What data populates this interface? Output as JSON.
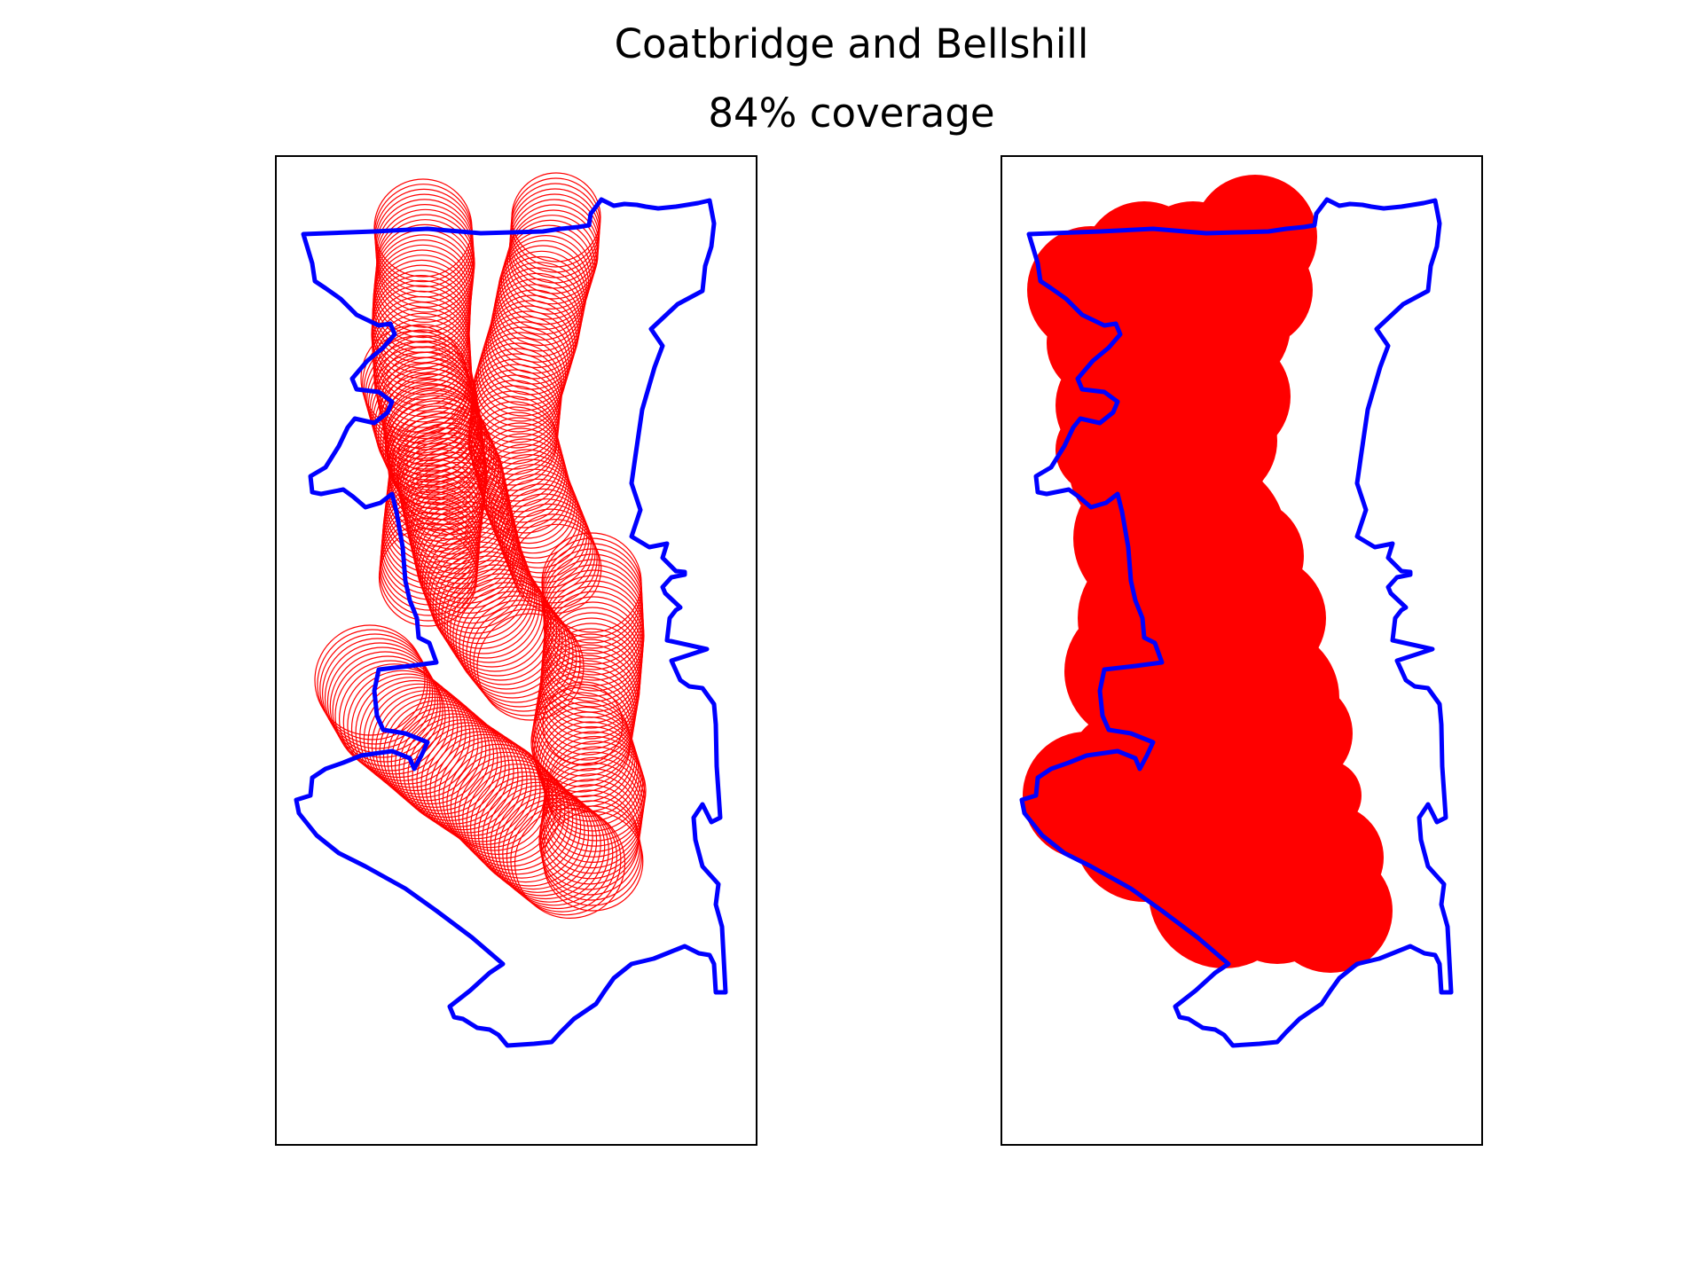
{
  "figure": {
    "title": "Coatbridge and Bellshill",
    "subtitle": "84% coverage"
  },
  "colors": {
    "boundary": "#0000ff",
    "circles": "#ff0000",
    "background": "#ffffff",
    "frame": "#000000"
  },
  "panels": [
    {
      "name": "circle-outlines",
      "style": "outline"
    },
    {
      "name": "coverage-filled",
      "style": "filled"
    }
  ]
}
